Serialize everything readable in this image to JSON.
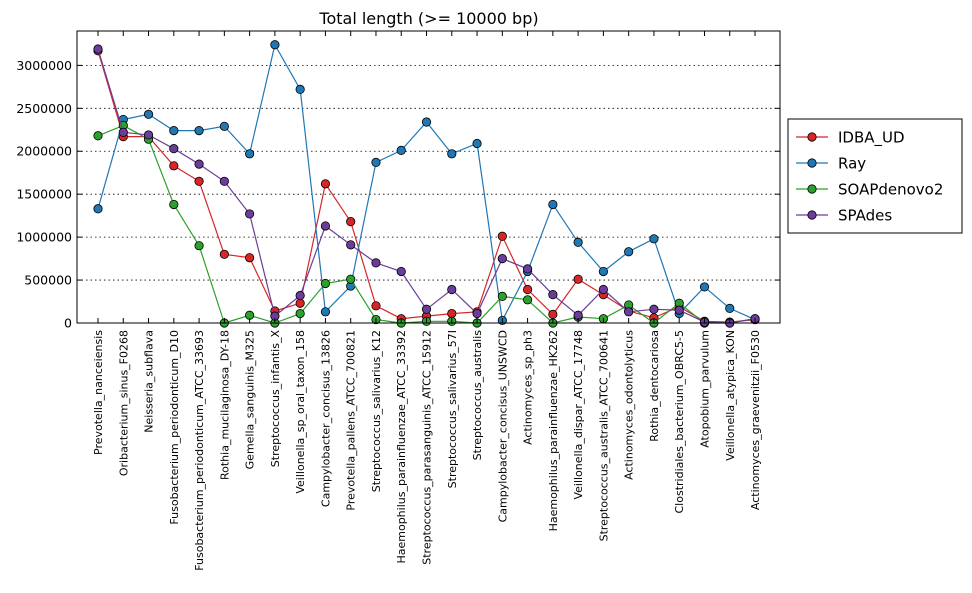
{
  "chart_data": {
    "type": "line",
    "title": "Total length (>= 10000 bp)",
    "xlabel": "",
    "ylabel": "",
    "ylim": [
      0,
      3400000
    ],
    "yticks": [
      0,
      500000,
      1000000,
      1500000,
      2000000,
      2500000,
      3000000
    ],
    "y_grid": true,
    "legend_position": "outside-right",
    "categories": [
      "Prevotella_nanceiensis",
      "Oribacterium_sinus_F0268",
      "Neisseria_subflava",
      "Fusobacterium_periodonticum_D10",
      "Fusobacterium_periodonticum_ATCC_33693",
      "Rothia_mucilaginosa_DY-18",
      "Gemella_sanguinis_M325",
      "Streptococcus_infantis_X",
      "Veillonella_sp_oral_taxon_158",
      "Campylobacter_concisus_13826",
      "Prevotella_pallens_ATCC_700821",
      "Streptococcus_salivarius_K12",
      "Haemophilus_parainfluenzae_ATCC_33392",
      "Streptococcus_parasanguinis_ATCC_15912",
      "Streptococcus_salivarius_57I",
      "Streptococcus_australis",
      "Campylobacter_concisus_UNSWCD",
      "Actinomyces_sp_ph3",
      "Haemophilus_parainfluenzae_HK262",
      "Veillonella_dispar_ATCC_17748",
      "Streptococcus_australis_ATCC_700641",
      "Actinomyces_odontolyticus",
      "Rothia_dentocariosa",
      "Clostridiales_bacterium_OBRC5-5",
      "Atopobium_parvulum",
      "Veillonella_atypica_KON",
      "Actinomyces_graevenitzii_F0530"
    ],
    "series": [
      {
        "name": "IDBA_UD",
        "color": "#d62728",
        "values": [
          3170000,
          2170000,
          2170000,
          1830000,
          1650000,
          800000,
          760000,
          140000,
          230000,
          1620000,
          1180000,
          200000,
          50000,
          80000,
          110000,
          130000,
          1010000,
          390000,
          100000,
          510000,
          330000,
          140000,
          60000,
          190000,
          20000,
          10000,
          40000
        ]
      },
      {
        "name": "Ray",
        "color": "#1f77b4",
        "values": [
          1330000,
          2370000,
          2430000,
          2240000,
          2240000,
          2290000,
          1970000,
          3240000,
          2720000,
          130000,
          430000,
          1870000,
          2010000,
          2340000,
          1970000,
          2090000,
          30000,
          600000,
          1380000,
          940000,
          600000,
          830000,
          980000,
          110000,
          420000,
          170000,
          40000
        ]
      },
      {
        "name": "SOAPdenovo2",
        "color": "#2ca02c",
        "values": [
          2180000,
          2300000,
          2140000,
          1380000,
          900000,
          0,
          90000,
          0,
          110000,
          460000,
          510000,
          40000,
          0,
          20000,
          20000,
          0,
          310000,
          270000,
          0,
          70000,
          50000,
          210000,
          0,
          230000,
          0,
          0,
          50000
        ]
      },
      {
        "name": "SPAdes",
        "color": "#6a3d9a",
        "values": [
          3190000,
          2220000,
          2190000,
          2030000,
          1850000,
          1650000,
          1270000,
          80000,
          320000,
          1130000,
          910000,
          700000,
          600000,
          160000,
          390000,
          110000,
          750000,
          630000,
          330000,
          90000,
          390000,
          130000,
          160000,
          150000,
          10000,
          0,
          50000
        ]
      }
    ]
  }
}
